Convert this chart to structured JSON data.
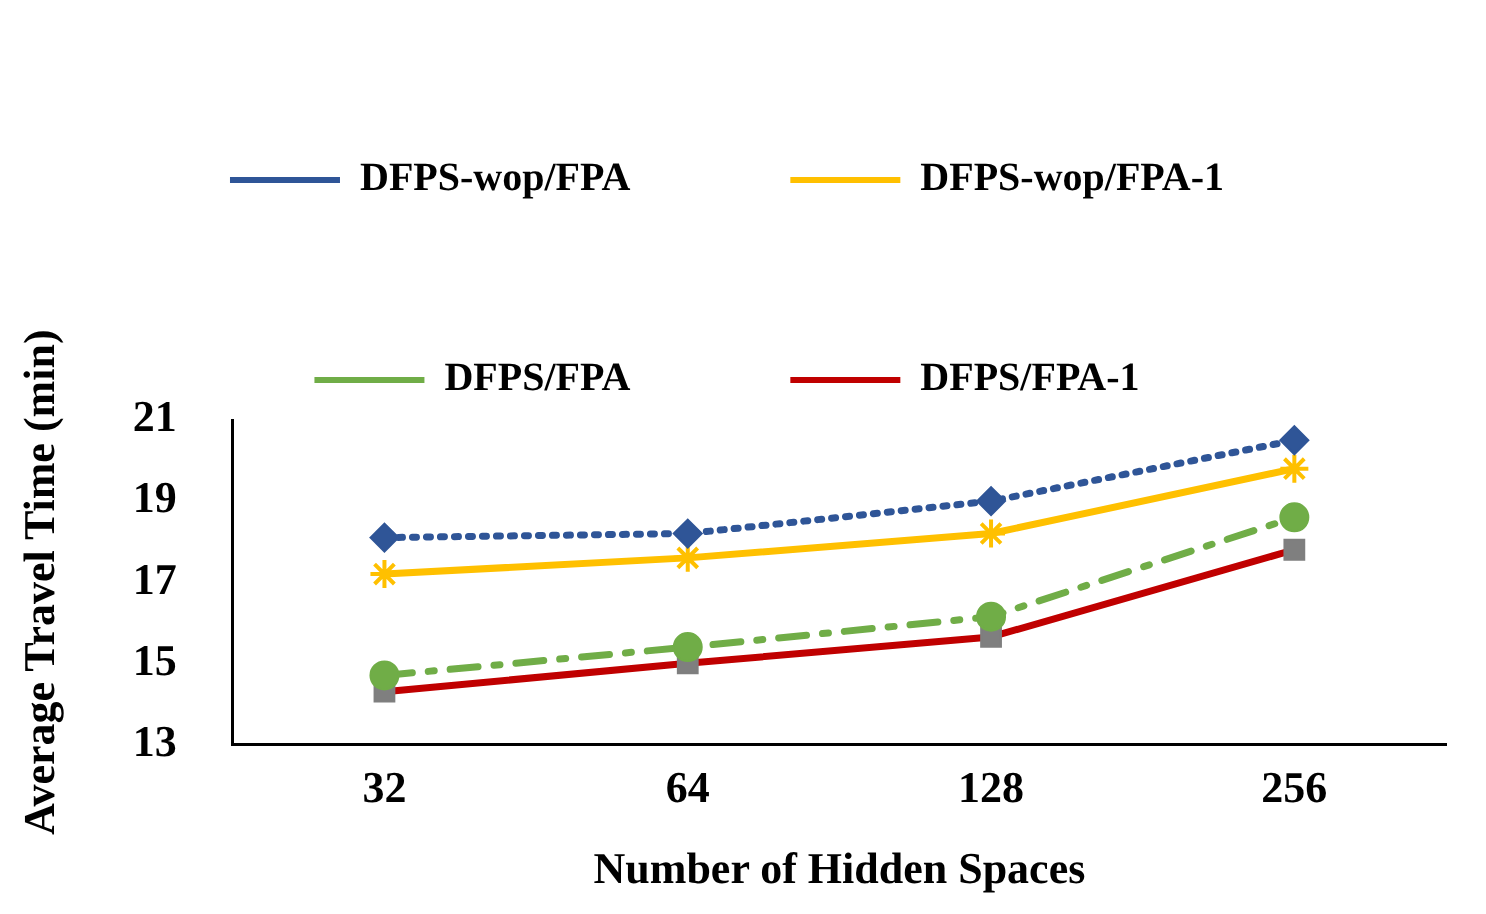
{
  "chart_data": {
    "type": "line",
    "xlabel": "Number of Hidden Spaces",
    "ylabel": "Average Travel Time (min)",
    "categories": [
      "32",
      "64",
      "128",
      "256"
    ],
    "series": [
      {
        "name": "DFPS-wop/FPA",
        "color": "#2f5597",
        "values": [
          18.1,
          18.2,
          19.0,
          20.5
        ],
        "marker": "diamond",
        "line_style": "dotted"
      },
      {
        "name": "DFPS-wop/FPA-1",
        "color": "#ffc000",
        "values": [
          17.2,
          17.6,
          18.2,
          19.8
        ],
        "marker": "cross",
        "line_style": "solid"
      },
      {
        "name": "DFPS/FPA",
        "color": "#70ad47",
        "values": [
          14.7,
          15.4,
          16.15,
          18.6
        ],
        "marker": "circle",
        "line_style": "dashed"
      },
      {
        "name": "DFPS/FPA-1",
        "color": "#c00000",
        "values": [
          14.3,
          15.0,
          15.65,
          17.8
        ],
        "marker": "square",
        "line_style": "solid"
      }
    ],
    "ylim": [
      13,
      21
    ],
    "yticks": [
      13,
      15,
      17,
      19,
      21
    ],
    "grid": false,
    "legend": "top"
  }
}
